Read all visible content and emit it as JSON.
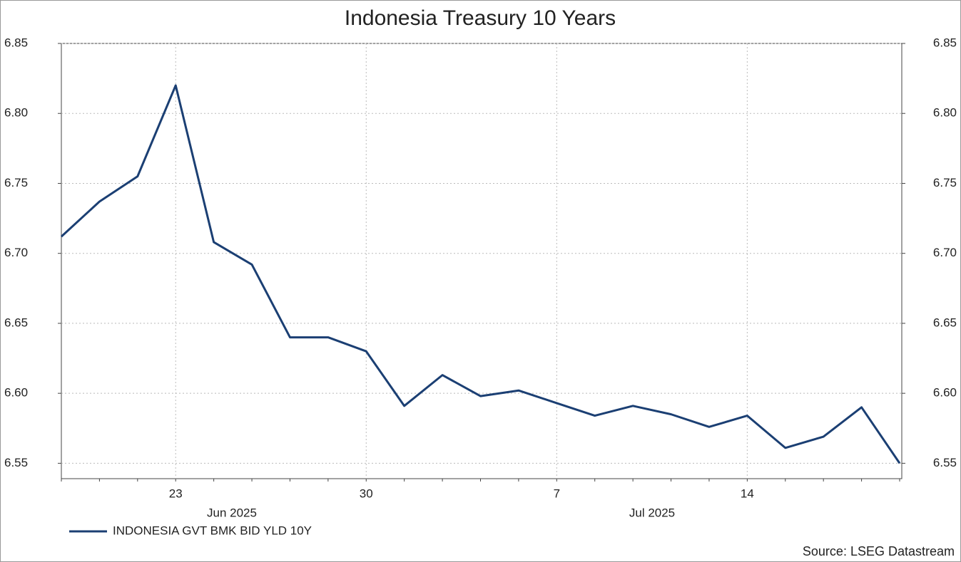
{
  "chart_data": {
    "type": "line",
    "title": "Indonesia Treasury 10 Years",
    "categories": [
      null,
      null,
      null,
      "23",
      null,
      null,
      null,
      null,
      "30",
      null,
      null,
      null,
      null,
      "7",
      null,
      null,
      null,
      null,
      "14",
      null,
      null,
      null,
      null
    ],
    "month_labels": [
      "Jun 2025",
      "Jul 2025"
    ],
    "series": [
      {
        "name": "INDONESIA GVT BMK BID YLD 10Y",
        "color": "#1b3f73",
        "values": [
          6.712,
          6.737,
          6.755,
          6.82,
          6.708,
          6.692,
          6.64,
          6.64,
          6.63,
          6.591,
          6.613,
          6.598,
          6.602,
          6.593,
          6.584,
          6.591,
          6.585,
          6.576,
          6.584,
          6.561,
          6.569,
          6.59,
          6.55
        ]
      }
    ],
    "ylim": [
      6.539,
      6.85
    ],
    "yticks": [
      6.55,
      {
        "value": 6.6,
        "label": "6.60"
      },
      6.65,
      {
        "value": 6.7,
        "label": "6.70"
      },
      6.75,
      {
        "value": 6.8,
        "label": "6.80"
      },
      6.85
    ],
    "grid": true,
    "source": "Source: LSEG Datastream"
  }
}
